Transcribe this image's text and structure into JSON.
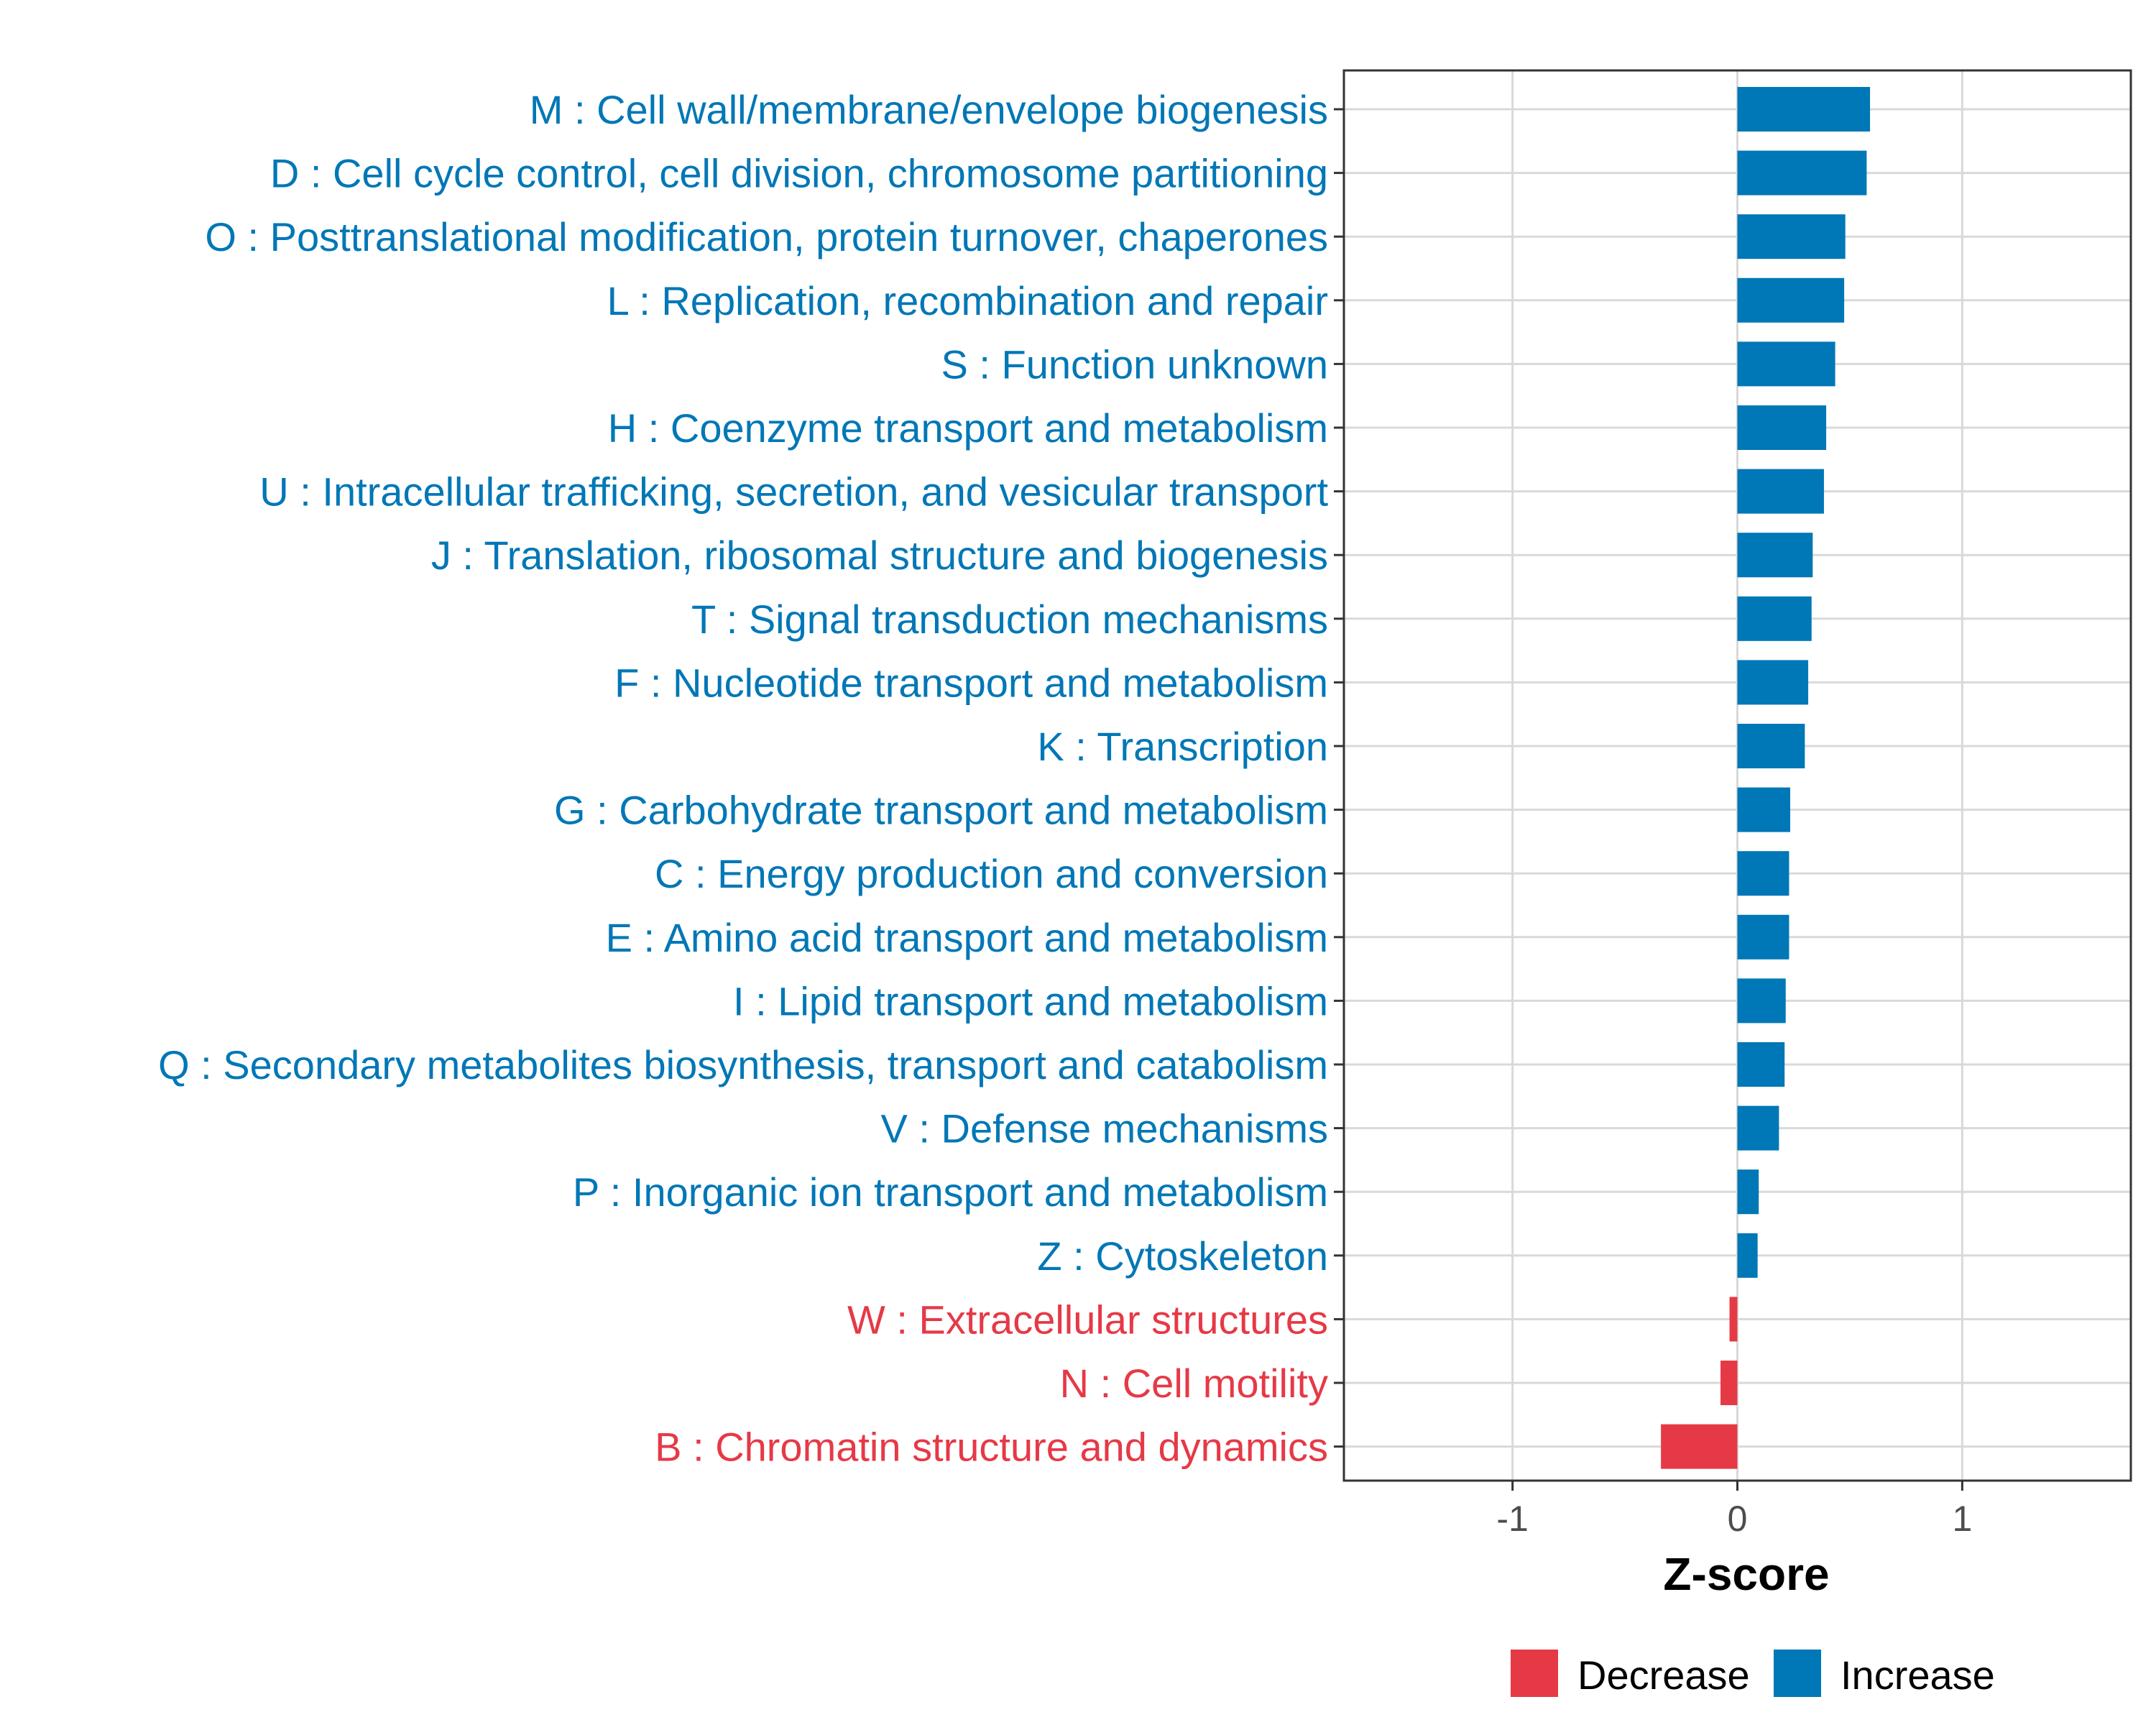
{
  "chart_data": {
    "type": "bar",
    "orientation": "horizontal",
    "title": "",
    "xlabel": "Z-score",
    "ylabel": "",
    "xlim": [
      -1.75,
      1.75
    ],
    "xticks": [
      -1,
      0,
      1
    ],
    "xtick_labels": [
      "-1",
      "0",
      "1"
    ],
    "grid": true,
    "legend_position": "bottom",
    "categories": [
      "M : Cell wall/membrane/envelope biogenesis",
      "D : Cell cycle control, cell division, chromosome partitioning",
      "O : Posttranslational modification, protein turnover, chaperones",
      "L : Replication, recombination and repair",
      "S : Function unknown",
      "H : Coenzyme transport and metabolism",
      "U : Intracellular trafficking, secretion, and vesicular transport",
      "J : Translation, ribosomal structure and biogenesis",
      "T : Signal transduction mechanisms",
      "F : Nucleotide transport and metabolism",
      "K : Transcription",
      "G : Carbohydrate transport and metabolism",
      "C : Energy production and conversion",
      "E : Amino acid transport and metabolism",
      "I : Lipid transport and metabolism",
      "Q : Secondary metabolites biosynthesis, transport and catabolism",
      "V : Defense mechanisms",
      "P : Inorganic ion transport and metabolism",
      "Z : Cytoskeleton",
      "W : Extracellular structures",
      "N : Cell motility",
      "B : Chromatin structure and dynamics"
    ],
    "values": [
      0.59,
      0.575,
      0.48,
      0.475,
      0.435,
      0.395,
      0.385,
      0.335,
      0.33,
      0.315,
      0.3,
      0.235,
      0.23,
      0.23,
      0.215,
      0.21,
      0.185,
      0.095,
      0.09,
      -0.035,
      -0.075,
      -0.34
    ],
    "groups": [
      "Increase",
      "Increase",
      "Increase",
      "Increase",
      "Increase",
      "Increase",
      "Increase",
      "Increase",
      "Increase",
      "Increase",
      "Increase",
      "Increase",
      "Increase",
      "Increase",
      "Increase",
      "Increase",
      "Increase",
      "Increase",
      "Increase",
      "Decrease",
      "Decrease",
      "Decrease"
    ],
    "legend": [
      {
        "label": "Decrease",
        "color": "#e63946"
      },
      {
        "label": "Increase",
        "color": "#0077b6"
      }
    ],
    "colors": {
      "Increase": "#0077b6",
      "Decrease": "#e63946",
      "grid": "#d9d9d9",
      "panel_border": "#333333"
    }
  }
}
